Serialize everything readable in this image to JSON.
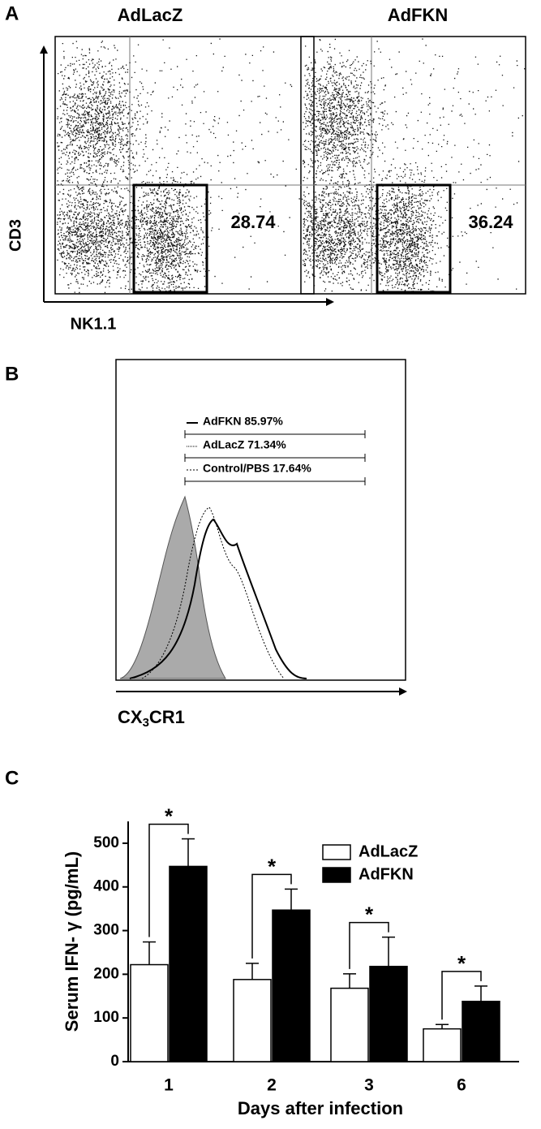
{
  "panel_a": {
    "label": "A",
    "titles": [
      "AdLacZ",
      "AdFKN"
    ],
    "y_label": "CD3",
    "x_label": "NK1.1",
    "gate_values": [
      "28.74",
      "36.24"
    ]
  },
  "panel_b": {
    "label": "B",
    "legend": [
      "AdFKN 85.97%",
      "AdLacZ 71.34%",
      "Control/PBS 17.64%"
    ],
    "x_label": {
      "main": "CX",
      "sub": "3",
      "rest": "CR1"
    }
  },
  "chart_data": {
    "type": "bar",
    "panel_label": "C",
    "y_label": "Serum IFN- γ (pg/mL)",
    "x_label": "Days after infection",
    "categories": [
      "1",
      "2",
      "3",
      "6"
    ],
    "series": [
      {
        "name": "AdLacZ",
        "color": "#ffffff",
        "values": [
          222,
          188,
          168,
          75
        ],
        "errors": [
          52,
          37,
          33,
          10
        ]
      },
      {
        "name": "AdFKN",
        "color": "#000000",
        "values": [
          447,
          347,
          218,
          138
        ],
        "errors": [
          63,
          48,
          67,
          35
        ]
      }
    ],
    "annotations": [
      "*",
      "*",
      "*",
      "*"
    ],
    "ylim": [
      0,
      550
    ],
    "yticks": [
      0,
      100,
      200,
      300,
      400,
      500
    ],
    "legend": "upper right"
  }
}
